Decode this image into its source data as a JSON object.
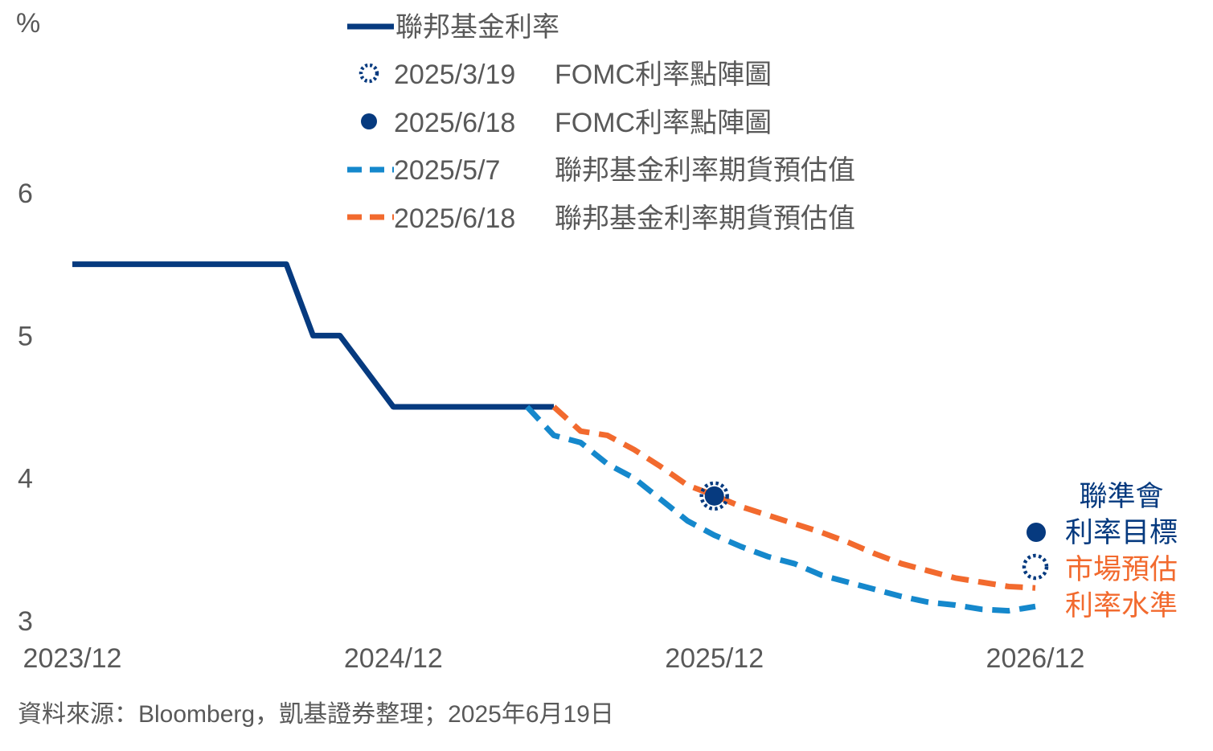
{
  "chart_data": {
    "type": "line",
    "unit_label": "%",
    "x": {
      "min": "2023-12",
      "max": "2026-12",
      "ticks": [
        "2023/12",
        "2024/12",
        "2025/12",
        "2026/12"
      ]
    },
    "ylim": [
      3,
      6.6
    ],
    "yticks": [
      3,
      4,
      5,
      6
    ],
    "grid": false,
    "series": [
      {
        "name": "聯邦基金利率",
        "color": "#063a7f",
        "style": "solid",
        "points": [
          [
            "2023-12",
            5.5
          ],
          [
            "2024-08",
            5.5
          ],
          [
            "2024-09",
            5.0
          ],
          [
            "2024-10",
            5.0
          ],
          [
            "2024-12",
            4.5
          ],
          [
            "2025-06",
            4.5
          ]
        ]
      },
      {
        "name": "聯邦基金利率期貨預估值",
        "date_label": "2025/5/7",
        "color": "#1588cc",
        "style": "dashed",
        "points": [
          [
            "2025-05",
            4.5
          ],
          [
            "2025-06",
            4.3
          ],
          [
            "2025-07",
            4.25
          ],
          [
            "2025-08",
            4.1
          ],
          [
            "2025-09",
            4.0
          ],
          [
            "2025-10",
            3.85
          ],
          [
            "2025-11",
            3.7
          ],
          [
            "2025-12",
            3.6
          ],
          [
            "2026-01",
            3.52
          ],
          [
            "2026-02",
            3.45
          ],
          [
            "2026-03",
            3.4
          ],
          [
            "2026-04",
            3.32
          ],
          [
            "2026-05",
            3.27
          ],
          [
            "2026-06",
            3.22
          ],
          [
            "2026-07",
            3.17
          ],
          [
            "2026-08",
            3.13
          ],
          [
            "2026-09",
            3.11
          ],
          [
            "2026-10",
            3.08
          ],
          [
            "2026-11",
            3.07
          ],
          [
            "2026-12",
            3.1
          ]
        ]
      },
      {
        "name": "聯邦基金利率期貨預估值",
        "date_label": "2025/6/18",
        "color": "#f26a2e",
        "style": "dashed",
        "points": [
          [
            "2025-06",
            4.5
          ],
          [
            "2025-07",
            4.33
          ],
          [
            "2025-08",
            4.3
          ],
          [
            "2025-09",
            4.2
          ],
          [
            "2025-10",
            4.08
          ],
          [
            "2025-11",
            3.95
          ],
          [
            "2025-12",
            3.88
          ],
          [
            "2026-01",
            3.8
          ],
          [
            "2026-02",
            3.74
          ],
          [
            "2026-03",
            3.68
          ],
          [
            "2026-04",
            3.62
          ],
          [
            "2026-05",
            3.55
          ],
          [
            "2026-06",
            3.47
          ],
          [
            "2026-07",
            3.4
          ],
          [
            "2026-08",
            3.35
          ],
          [
            "2026-09",
            3.3
          ],
          [
            "2026-10",
            3.27
          ],
          [
            "2026-11",
            3.24
          ],
          [
            "2026-12",
            3.23
          ]
        ]
      }
    ],
    "dots": [
      {
        "name": "FOMC利率點陣圖",
        "date_label": "2025/3/19",
        "style": "open-dotted",
        "color": "#063a7f",
        "points": [
          [
            "2025-12",
            3.875
          ],
          [
            "2026-12",
            3.375
          ]
        ]
      },
      {
        "name": "FOMC利率點陣圖",
        "date_label": "2025/6/18",
        "style": "filled",
        "color": "#063a7f",
        "points": [
          [
            "2025-12",
            3.875
          ],
          [
            "2026-12",
            3.625
          ]
        ]
      }
    ],
    "annotations": {
      "fed": {
        "line1": "聯準會",
        "line2": "利率目標",
        "color": "#063a7f"
      },
      "market": {
        "line1": "市場預估",
        "line2": "利率水準",
        "color": "#f26a2e"
      }
    },
    "legend_placement": "top-center"
  },
  "source": "資料來源：Bloomberg，凱基證券整理；2025年6月19日"
}
